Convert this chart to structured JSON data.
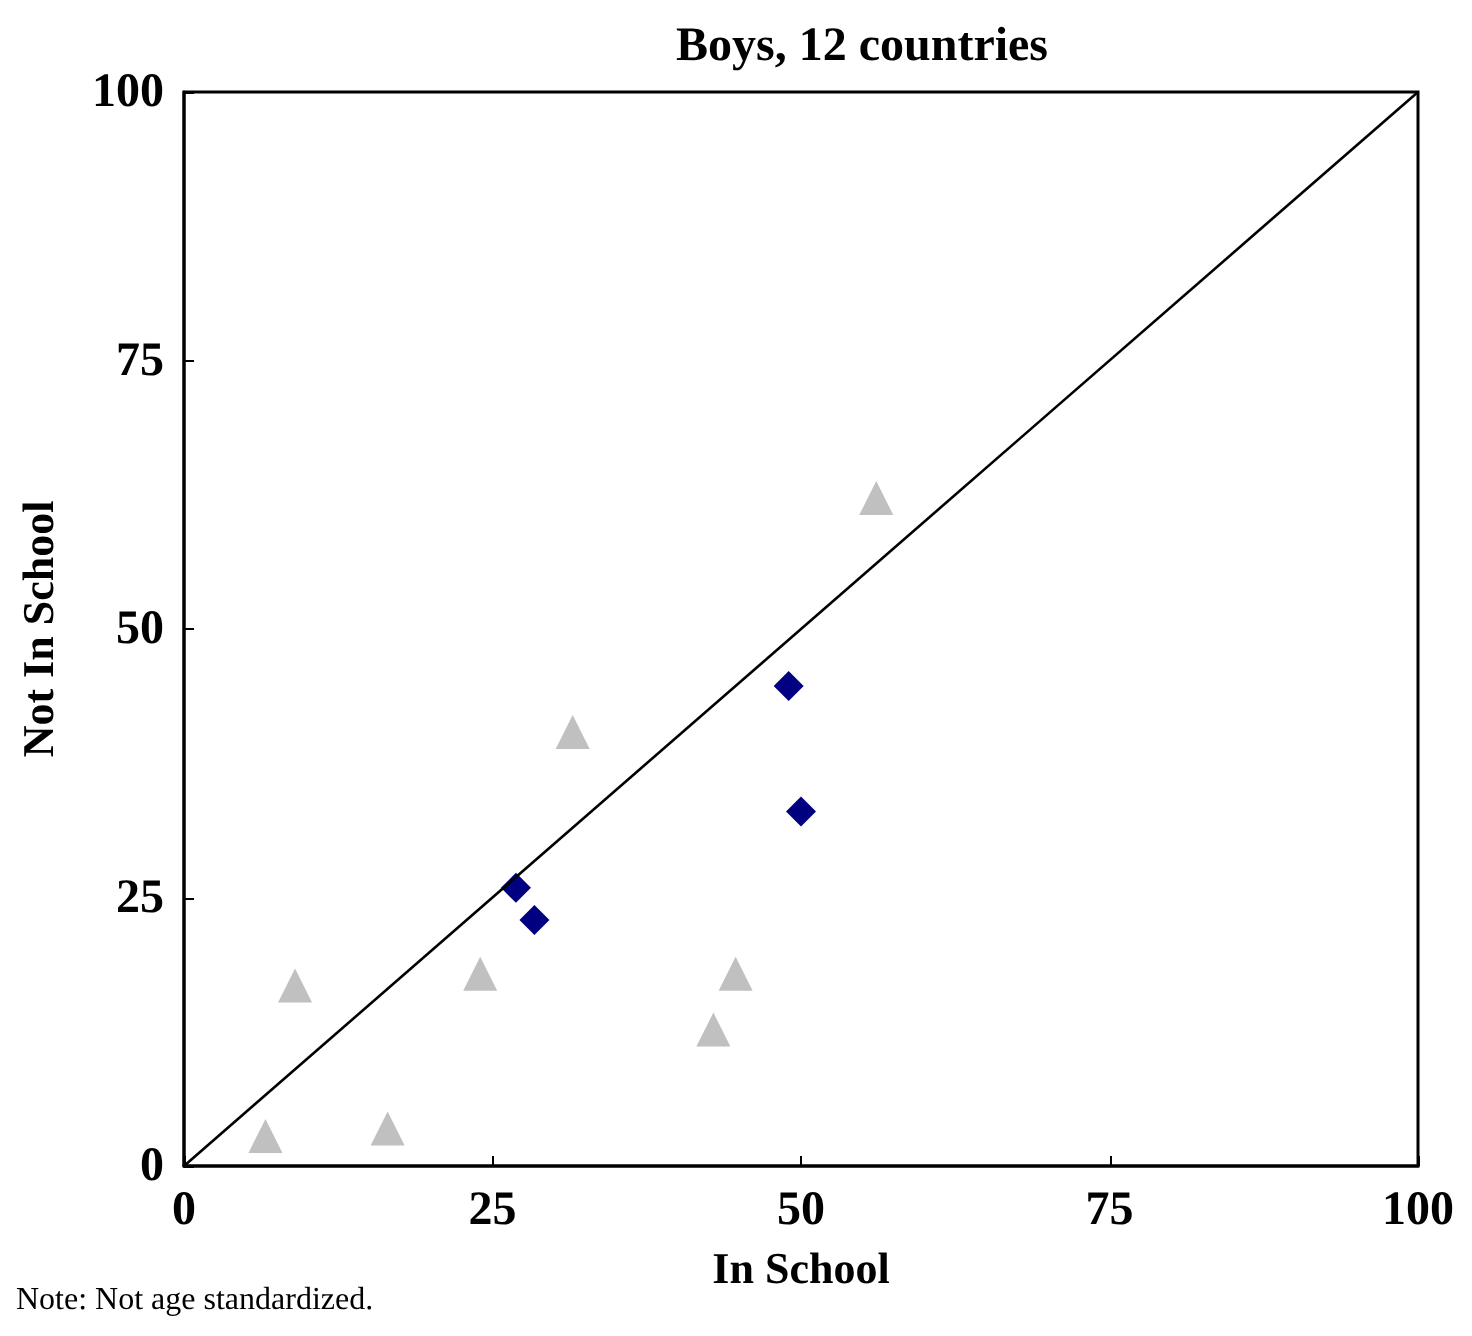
{
  "chart_data": {
    "type": "scatter",
    "title": "Boys, 12 countries",
    "xlabel": "In School",
    "ylabel": "Not In School",
    "annotations": [
      "Note: Not age standardized."
    ],
    "xlim": [
      0,
      100
    ],
    "xticks": [
      0,
      25,
      50,
      75,
      100
    ],
    "ylim": [
      0,
      100
    ],
    "yticks": [
      0,
      25,
      50,
      75,
      100
    ],
    "grid": false,
    "series": [
      {
        "marker": "triangle",
        "color": "#c0c0c0",
        "x": [
          6.6,
          9.0,
          16.5,
          24.0,
          31.5,
          42.9,
          44.7,
          56.1
        ],
        "values": [
          2.8,
          16.8,
          3.5,
          17.9,
          40.4,
          12.7,
          17.9,
          62.2
        ]
      },
      {
        "marker": "diamond",
        "color": "#000080",
        "x": [
          26.9,
          28.4,
          49.0,
          50.0
        ],
        "values": [
          25.9,
          22.9,
          44.7,
          33.0
        ]
      },
      {
        "type": "line",
        "marker": "none",
        "line_style": "solid",
        "color": "#000000",
        "x": [
          0,
          100
        ],
        "values": [
          0,
          100
        ]
      }
    ]
  }
}
